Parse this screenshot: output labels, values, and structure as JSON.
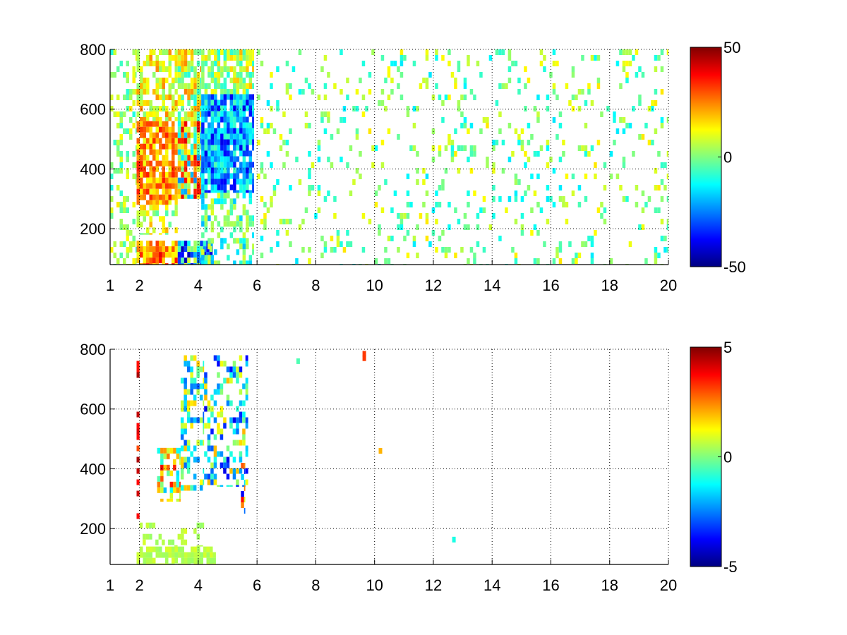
{
  "figure": {
    "panels": [
      {
        "name": "top-heatmap"
      },
      {
        "name": "bottom-heatmap"
      }
    ]
  },
  "chart_data": [
    {
      "type": "heatmap",
      "title": "",
      "xlabel": "",
      "ylabel": "",
      "xlim": [
        1,
        20
      ],
      "ylim": [
        80,
        800
      ],
      "x_ticks": [
        1,
        2,
        4,
        6,
        8,
        10,
        12,
        14,
        16,
        18,
        20
      ],
      "y_ticks": [
        200,
        400,
        600,
        800
      ],
      "grid": true,
      "colormap": "jet",
      "clim": [
        -50,
        50
      ],
      "colorbar_ticks": [
        50,
        0,
        -50
      ],
      "regions": [
        {
          "x": [
            1.0,
            1.9
          ],
          "y": [
            80,
            800
          ],
          "range": [
            -10,
            15
          ],
          "density": 0.35
        },
        {
          "x": [
            1.9,
            3.3
          ],
          "y": [
            280,
            560
          ],
          "range": [
            10,
            35
          ],
          "density": 0.85
        },
        {
          "x": [
            1.9,
            3.3
          ],
          "y": [
            560,
            800
          ],
          "range": [
            0,
            25
          ],
          "density": 0.6
        },
        {
          "x": [
            1.9,
            3.3
          ],
          "y": [
            180,
            280
          ],
          "range": [
            -5,
            20
          ],
          "density": 0.5
        },
        {
          "x": [
            1.9,
            3.3
          ],
          "y": [
            80,
            160
          ],
          "range": [
            10,
            40
          ],
          "density": 0.85
        },
        {
          "x": [
            3.3,
            4.1
          ],
          "y": [
            300,
            560
          ],
          "range": [
            -25,
            40
          ],
          "density": 0.9
        },
        {
          "x": [
            3.3,
            4.1
          ],
          "y": [
            560,
            800
          ],
          "range": [
            -10,
            25
          ],
          "density": 0.75
        },
        {
          "x": [
            3.3,
            4.5
          ],
          "y": [
            80,
            160
          ],
          "range": [
            -45,
            10
          ],
          "density": 0.85
        },
        {
          "x": [
            4.1,
            5.9
          ],
          "y": [
            320,
            650
          ],
          "range": [
            -40,
            -5
          ],
          "density": 0.9
        },
        {
          "x": [
            4.1,
            5.9
          ],
          "y": [
            650,
            800
          ],
          "range": [
            -10,
            20
          ],
          "density": 0.75
        },
        {
          "x": [
            4.1,
            5.9
          ],
          "y": [
            80,
            320
          ],
          "range": [
            -20,
            10
          ],
          "density": 0.45
        },
        {
          "x": [
            6.0,
            20.0
          ],
          "y": [
            80,
            800
          ],
          "range": [
            -15,
            15
          ],
          "density": 0.13
        }
      ]
    },
    {
      "type": "heatmap",
      "title": "",
      "xlabel": "",
      "ylabel": "",
      "xlim": [
        1,
        20
      ],
      "ylim": [
        80,
        800
      ],
      "x_ticks": [
        1,
        2,
        4,
        6,
        8,
        10,
        12,
        14,
        16,
        18,
        20
      ],
      "y_ticks": [
        200,
        400,
        600,
        800
      ],
      "grid": true,
      "colormap": "jet",
      "clim": [
        -5,
        5
      ],
      "colorbar_ticks": [
        5,
        0,
        -5
      ],
      "regions": [
        {
          "x": [
            2.6,
            3.4
          ],
          "y": [
            290,
            470
          ],
          "range": [
            -2,
            4
          ],
          "density": 0.55
        },
        {
          "x": [
            3.4,
            4.2
          ],
          "y": [
            320,
            780
          ],
          "range": [
            -3,
            2
          ],
          "density": 0.45
        },
        {
          "x": [
            4.2,
            5.7
          ],
          "y": [
            340,
            780
          ],
          "range": [
            -4,
            2
          ],
          "density": 0.45
        },
        {
          "x": [
            1.9,
            4.6
          ],
          "y": [
            80,
            140
          ],
          "range": [
            0.2,
            0.9
          ],
          "density": 0.85
        },
        {
          "x": [
            2.0,
            4.2
          ],
          "y": [
            140,
            220
          ],
          "range": [
            0.2,
            0.9
          ],
          "density": 0.22
        },
        {
          "x": [
            1.9,
            2.0
          ],
          "y": [
            220,
            780
          ],
          "range": [
            3,
            5
          ],
          "density": 0.45
        },
        {
          "x": [
            5.45,
            5.6
          ],
          "y": [
            250,
            420
          ],
          "range": [
            -5,
            4
          ],
          "density": 0.6
        }
      ],
      "points": [
        {
          "x": 9.65,
          "y": 770,
          "value": 3.2
        },
        {
          "x": 9.65,
          "y": 785,
          "value": 3.2
        },
        {
          "x": 10.2,
          "y": 460,
          "value": 2.0
        },
        {
          "x": 12.7,
          "y": 163,
          "value": -1.0
        },
        {
          "x": 7.4,
          "y": 760,
          "value": -0.5
        }
      ]
    }
  ]
}
